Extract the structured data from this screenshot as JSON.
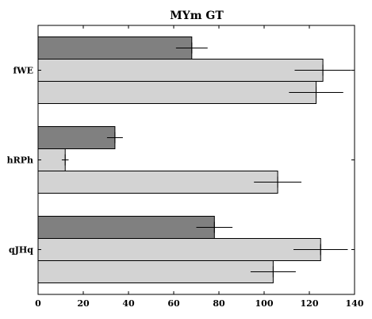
{
  "chart_data": {
    "type": "bar",
    "orientation": "horizontal",
    "title": "MYm GT",
    "xlabel": "",
    "ylabel": "",
    "xlim": [
      0,
      140
    ],
    "x_ticks": [
      0,
      20,
      40,
      60,
      80,
      100,
      120,
      140
    ],
    "grid": false,
    "legend": "none",
    "categories": [
      "fWE",
      "hRPh",
      "qJHq"
    ],
    "series": [
      {
        "values": [
          68,
          34,
          78
        ],
        "errors": [
          7,
          3.5,
          8
        ],
        "color": "#808080"
      },
      {
        "values": [
          126,
          12,
          125
        ],
        "errors": [
          12.5,
          1.5,
          12
        ],
        "color": "#d3d3d3"
      },
      {
        "values": [
          123,
          106,
          104
        ],
        "errors": [
          12,
          10.5,
          10
        ],
        "color": "#d3d3d3"
      }
    ]
  }
}
